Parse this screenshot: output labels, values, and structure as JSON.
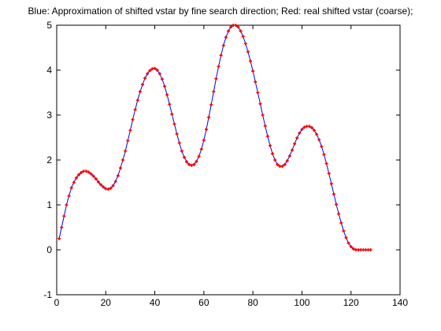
{
  "chart_data": {
    "type": "line",
    "title": "Blue: Approximation of shifted vstar by fine search direction; Red: real shifted vstar (coarse);",
    "x": [
      1,
      2,
      3,
      4,
      5,
      6,
      7,
      8,
      9,
      10,
      11,
      12,
      13,
      14,
      15,
      16,
      17,
      18,
      19,
      20,
      21,
      22,
      23,
      24,
      25,
      26,
      27,
      28,
      29,
      30,
      31,
      32,
      33,
      34,
      35,
      36,
      37,
      38,
      39,
      40,
      41,
      42,
      43,
      44,
      45,
      46,
      47,
      48,
      49,
      50,
      51,
      52,
      53,
      54,
      55,
      56,
      57,
      58,
      59,
      60,
      61,
      62,
      63,
      64,
      65,
      66,
      67,
      68,
      69,
      70,
      71,
      72,
      73,
      74,
      75,
      76,
      77,
      78,
      79,
      80,
      81,
      82,
      83,
      84,
      85,
      86,
      87,
      88,
      89,
      90,
      91,
      92,
      93,
      94,
      95,
      96,
      97,
      98,
      99,
      100,
      101,
      102,
      103,
      104,
      105,
      106,
      107,
      108,
      109,
      110,
      111,
      112,
      113,
      114,
      115,
      116,
      117,
      118,
      119,
      120,
      121,
      122,
      123,
      124,
      125,
      126,
      127,
      128
    ],
    "series": [
      {
        "color": "#0000ff",
        "values": [
          0.25,
          0.5,
          0.75,
          1.0,
          1.2,
          1.38,
          1.5,
          1.6,
          1.67,
          1.72,
          1.75,
          1.75,
          1.73,
          1.69,
          1.64,
          1.58,
          1.51,
          1.45,
          1.4,
          1.36,
          1.35,
          1.37,
          1.43,
          1.52,
          1.65,
          1.82,
          2.0,
          2.2,
          2.43,
          2.66,
          2.9,
          3.12,
          3.33,
          3.52,
          3.68,
          3.82,
          3.92,
          3.99,
          4.03,
          4.04,
          4.0,
          3.92,
          3.8,
          3.64,
          3.45,
          3.24,
          3.02,
          2.8,
          2.58,
          2.38,
          2.2,
          2.06,
          1.96,
          1.9,
          1.88,
          1.9,
          1.97,
          2.08,
          2.24,
          2.44,
          2.68,
          2.95,
          3.23,
          3.52,
          3.81,
          4.08,
          4.33,
          4.55,
          4.73,
          4.87,
          4.96,
          5.0,
          5.0,
          4.96,
          4.87,
          4.75,
          4.59,
          4.41,
          4.2,
          3.98,
          3.74,
          3.5,
          3.25,
          3.0,
          2.76,
          2.53,
          2.32,
          2.14,
          2.0,
          1.9,
          1.86,
          1.86,
          1.9,
          1.98,
          2.09,
          2.22,
          2.36,
          2.49,
          2.6,
          2.68,
          2.73,
          2.75,
          2.75,
          2.72,
          2.66,
          2.57,
          2.45,
          2.3,
          2.12,
          1.92,
          1.7,
          1.47,
          1.24,
          1.01,
          0.8,
          0.6,
          0.42,
          0.27,
          0.15,
          0.07,
          0.02,
          0,
          0,
          0,
          0,
          0,
          0,
          0
        ]
      },
      {
        "color": "#ff0000",
        "marker": true,
        "values": [
          0.25,
          0.5,
          0.75,
          1.0,
          1.2,
          1.38,
          1.5,
          1.6,
          1.67,
          1.72,
          1.75,
          1.75,
          1.73,
          1.69,
          1.64,
          1.58,
          1.51,
          1.45,
          1.4,
          1.36,
          1.35,
          1.37,
          1.43,
          1.52,
          1.65,
          1.82,
          2.0,
          2.2,
          2.43,
          2.66,
          2.9,
          3.12,
          3.33,
          3.52,
          3.68,
          3.82,
          3.92,
          3.99,
          4.03,
          4.04,
          4.0,
          3.92,
          3.8,
          3.64,
          3.45,
          3.24,
          3.02,
          2.8,
          2.58,
          2.38,
          2.2,
          2.06,
          1.96,
          1.9,
          1.88,
          1.9,
          1.97,
          2.08,
          2.24,
          2.44,
          2.68,
          2.95,
          3.23,
          3.52,
          3.81,
          4.08,
          4.33,
          4.55,
          4.73,
          4.87,
          4.96,
          5.0,
          5.0,
          4.96,
          4.87,
          4.75,
          4.59,
          4.41,
          4.2,
          3.98,
          3.74,
          3.5,
          3.25,
          3.0,
          2.76,
          2.53,
          2.32,
          2.14,
          2.0,
          1.9,
          1.86,
          1.86,
          1.9,
          1.98,
          2.09,
          2.22,
          2.36,
          2.49,
          2.6,
          2.68,
          2.73,
          2.75,
          2.75,
          2.72,
          2.66,
          2.57,
          2.45,
          2.3,
          2.12,
          1.92,
          1.7,
          1.47,
          1.24,
          1.01,
          0.8,
          0.6,
          0.42,
          0.27,
          0.15,
          0.07,
          0.02,
          0,
          0,
          0,
          0,
          0,
          0,
          0
        ]
      }
    ],
    "xlim": [
      0,
      140
    ],
    "xticks": [
      0,
      20,
      40,
      60,
      80,
      100,
      120,
      140
    ],
    "ylim": [
      -1,
      5
    ],
    "yticks": [
      -1,
      0,
      1,
      2,
      3,
      4,
      5
    ],
    "grid": false
  }
}
